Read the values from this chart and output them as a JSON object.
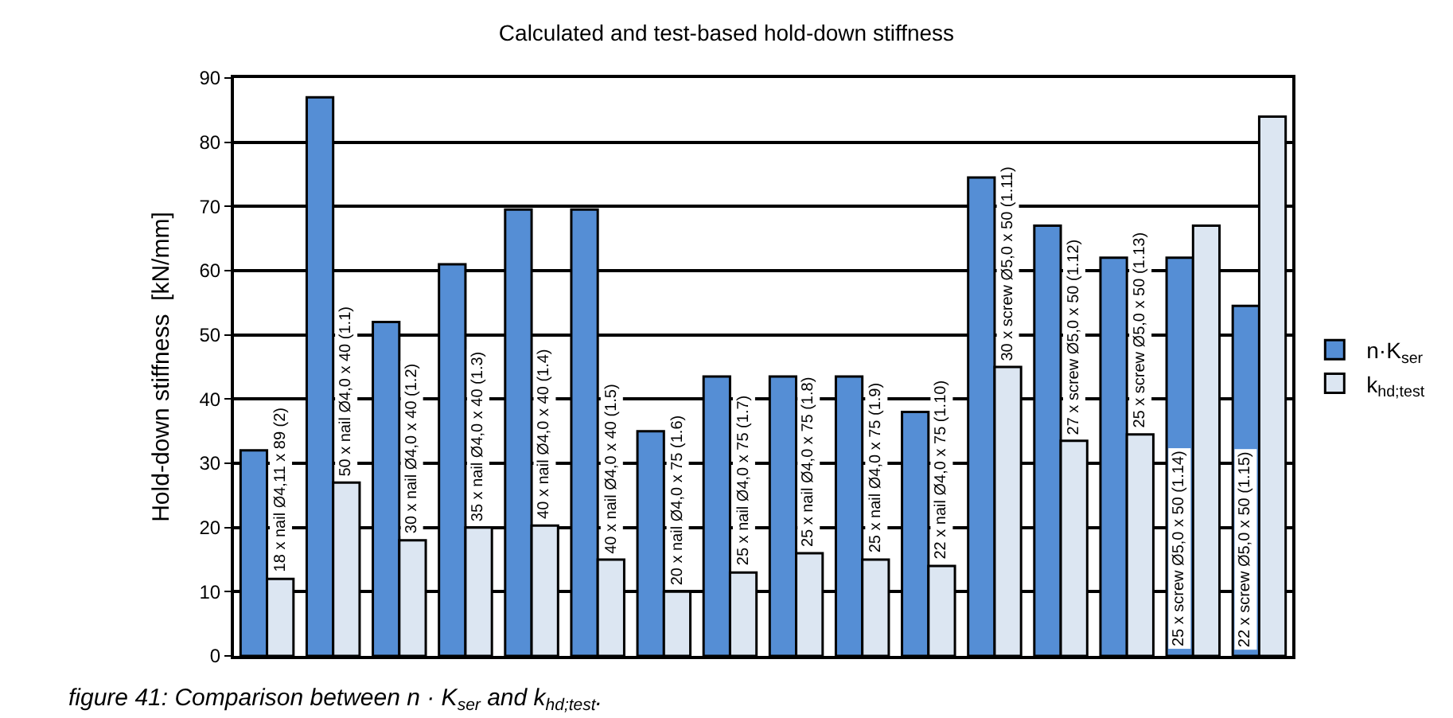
{
  "chart_data": {
    "type": "bar",
    "title": "Calculated and test-based hold-down stiffness",
    "ylabel": "Hold-down stiffness  [kN/mm]",
    "annotations": [
      "figure 41: Comparison between n · K$_{ser}$ and k$_{hd;test}$."
    ],
    "categories": [
      "18 x nail Ø4,11 x 89 (2)",
      "50 x nail Ø4,0 x 40 (1.1)",
      "30 x nail Ø4,0 x 40 (1.2)",
      "35 x nail Ø4,0 x 40 (1.3)",
      "40 x nail Ø4,0 x 40 (1.4)",
      "40 x nail Ø4,0 x 40 (1.5)",
      "20 x nail Ø4,0 x 75 (1.6)",
      "25 x nail Ø4,0 x 75 (1.7)",
      "25 x nail Ø4,0 x 75 (1.8)",
      "25 x nail Ø4,0 x 75 (1.9)",
      "22 x nail Ø4,0 x 75 (1.10)",
      "30 x screw Ø5,0 x 50 (1.11)",
      "27 x screw Ø5,0 x 50 (1.12)",
      "25 x screw Ø5,0 x 50 (1.13)",
      "25 x screw Ø5,0 x 50 (1.14)",
      "22 x screw Ø5,0 x 50 (1.15)"
    ],
    "series": [
      {
        "name": "n·K$_{ser}$",
        "color": "#558ed5",
        "values": [
          32,
          87,
          52,
          61,
          69.5,
          69.5,
          35,
          43.5,
          43.5,
          43.5,
          38,
          74.5,
          67,
          62,
          62,
          54.5
        ]
      },
      {
        "name": "k$_{hd;test}$",
        "color": "#dce6f2",
        "values": [
          12,
          27,
          18,
          20,
          20.3,
          15,
          10,
          13,
          16,
          15,
          14,
          45,
          33.5,
          34.5,
          67,
          84
        ]
      }
    ],
    "ylim": [
      0,
      90
    ],
    "yticks": [
      0,
      10,
      20,
      30,
      40,
      50,
      60,
      70,
      80,
      90
    ],
    "grid": "y",
    "legend": "right"
  }
}
